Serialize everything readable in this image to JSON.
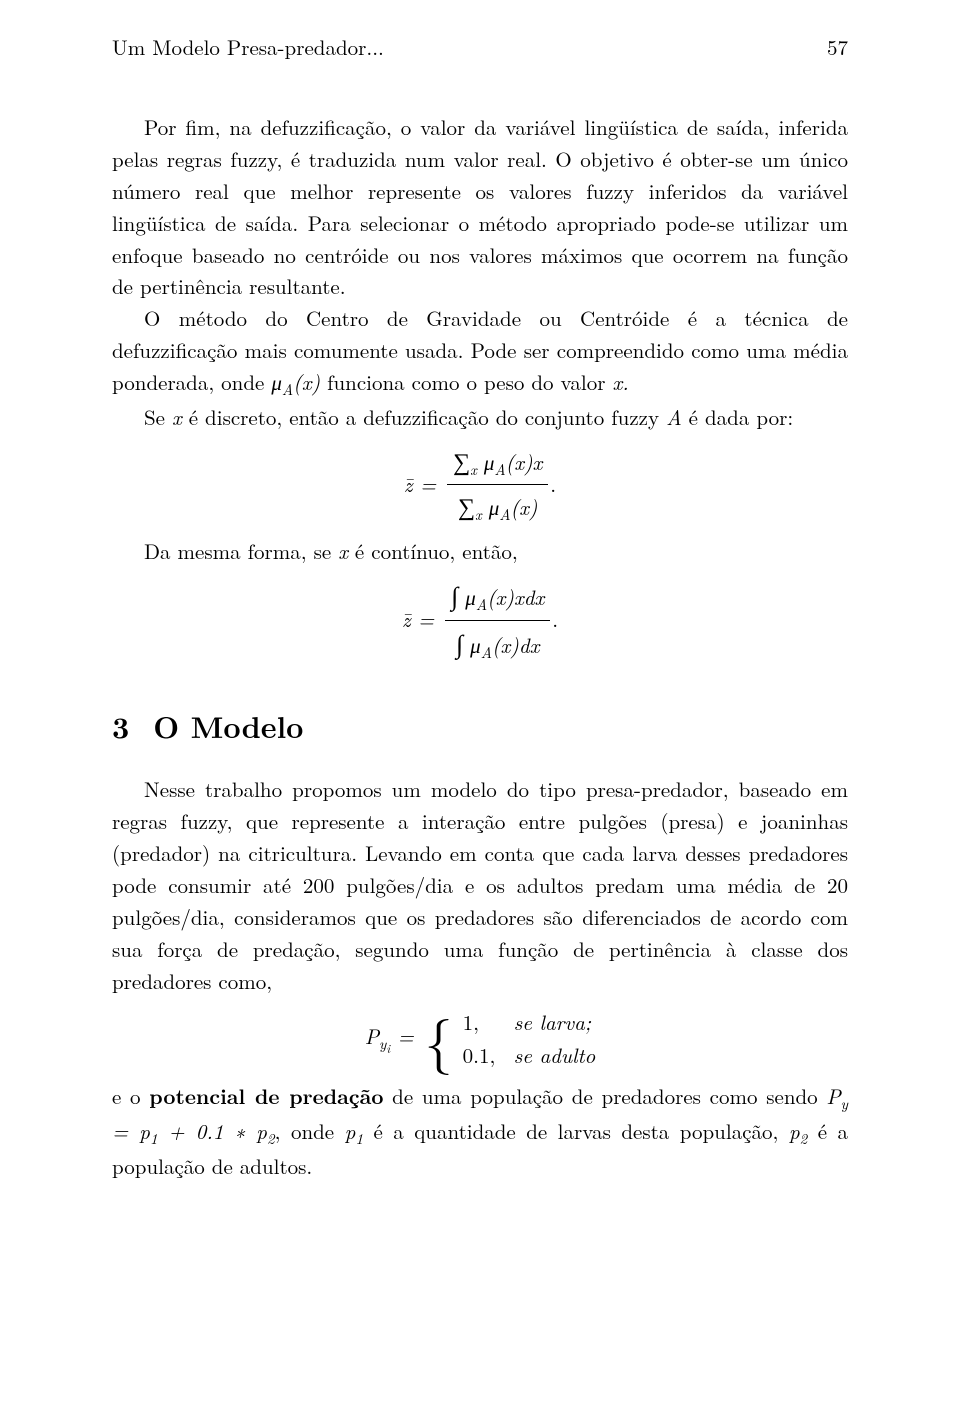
{
  "header": {
    "running_title": "Um Modelo Presa-predador...",
    "page_number": "57"
  },
  "para1": "Por fim, na defuzzificação, o valor da variável lingüística de saída, inferida pelas regras fuzzy, é traduzida num valor real. O objetivo é obter-se um único número real que melhor represente os valores fuzzy inferidos da variável lingüística de saída. Para selecionar o método apropriado pode-se utilizar um enfoque baseado no centróide ou nos valores máximos que ocorrem na função de pertinência resultante.",
  "para2_a": "O método do Centro de Gravidade ou Centróide é a técnica de defuzzificação mais comumente usada. Pode ser compreendido como uma média ponderada, onde ",
  "para2_b": " funciona como o peso do valor ",
  "para3_a": "Se ",
  "para3_b": " é discreto, então a defuzzificação do conjunto fuzzy ",
  "para3_c": " é dada por:",
  "para4_a": "Da mesma forma, se ",
  "para4_b": " é contínuo, então,",
  "section3": {
    "number": "3",
    "title": "O Modelo"
  },
  "para5": "Nesse trabalho propomos um modelo do tipo presa-predador, baseado em regras fuzzy, que represente a interação entre pulgões (presa) e joaninhas (predador) na citricultura. Levando em conta que cada larva desses predadores pode consumir até 200 pulgões/dia e os adultos predam uma média de 20 pulgões/dia, consideramos que os predadores são diferenciados de acordo com sua força de predação, segundo uma função de pertinência à classe dos predadores como,",
  "para6_a": "e o ",
  "para6_bold": "potencial de predação",
  "para6_b": " de uma população de predadores como sendo ",
  "para6_c": ", onde ",
  "para6_d": " é a quantidade de larvas desta população, ",
  "para6_e": " é a população de adultos.",
  "math": {
    "muA_x": "μ",
    "A": "A",
    "x": "x",
    "x_dot": "x.",
    "A_space": "A",
    "zbar_eq": "z̄ =",
    "sum": "∑",
    "x_sub": "x",
    "muA_x_x": "(x)x",
    "muA_x_paren": "(x)",
    "integral": "∫",
    "muA_x_xdx": "(x)xdx",
    "muA_x_dx": "(x)dx",
    "Pyi": "P",
    "yi": "y",
    "i": "i",
    "eq": " = ",
    "case1_val": "1,",
    "case1_cond": "se  larva;",
    "case2_val": "0.1,",
    "case2_cond": "se  adulto",
    "Py_eq": "P",
    "y_sub": "y",
    "eq_p1": " = p",
    "one": "1",
    "plus_01_p": " + 0.1 ∗ p",
    "two": "2",
    "p": "p"
  }
}
